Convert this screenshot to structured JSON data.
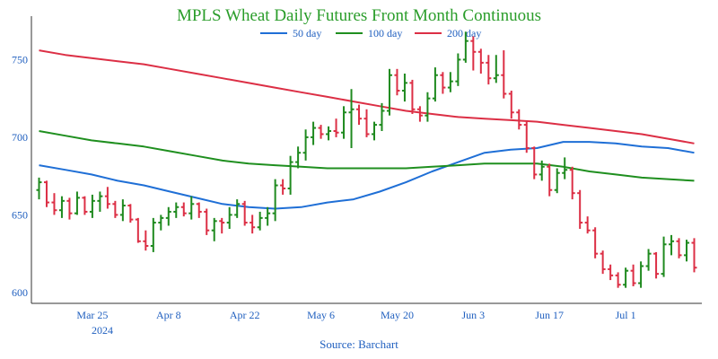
{
  "colors": {
    "title": "#2a9d2a",
    "axis_text": "#1f5fbf",
    "up_bar": "#1f8a1f",
    "down_bar": "#dc2f45",
    "ma50": "#1f6fd6",
    "ma100": "#1f8f1f",
    "ma200": "#dc2f45",
    "axis_line": "#333333"
  },
  "chart_data": {
    "type": "ohlc",
    "title": "MPLS Wheat Daily Futures Front Month Continuous",
    "source": "Source: Barchart",
    "xlabel": "",
    "ylabel": "",
    "ylim": [
      593,
      778
    ],
    "y_ticks": [
      600,
      650,
      700,
      750
    ],
    "x_tick_labels": [
      "Mar 25",
      "Apr 8",
      "Apr 22",
      "May 6",
      "May 20",
      "Jun 3",
      "Jun 17",
      "Jul 1"
    ],
    "x_tick_sublabel": "2024",
    "grid": false,
    "legend_position": "top-center",
    "series": [
      {
        "name": "50 day",
        "color": "#1f6fd6",
        "values": [
          682,
          679,
          676,
          672,
          669,
          665,
          661,
          657,
          655,
          654,
          655,
          658,
          660,
          665,
          671,
          678,
          684,
          690,
          692,
          693,
          697,
          697,
          696,
          694,
          693,
          690
        ]
      },
      {
        "name": "100 day",
        "color": "#1f8f1f",
        "values": [
          704,
          701,
          698,
          696,
          694,
          691,
          688,
          685,
          683,
          682,
          681,
          680,
          680,
          680,
          680,
          681,
          682,
          683,
          683,
          683,
          681,
          678,
          676,
          674,
          673,
          672
        ]
      },
      {
        "name": "200 day",
        "color": "#dc2f45",
        "values": [
          756,
          753,
          751,
          749,
          747,
          744,
          741,
          738,
          735,
          732,
          729,
          726,
          723,
          720,
          717,
          715,
          713,
          712,
          711,
          710,
          708,
          706,
          704,
          702,
          699,
          696
        ]
      }
    ],
    "ohlc": [
      {
        "o": 666,
        "h": 674,
        "l": 660,
        "c": 671
      },
      {
        "o": 671,
        "h": 672,
        "l": 655,
        "c": 658
      },
      {
        "o": 658,
        "h": 664,
        "l": 650,
        "c": 653
      },
      {
        "o": 653,
        "h": 662,
        "l": 648,
        "c": 659
      },
      {
        "o": 659,
        "h": 661,
        "l": 647,
        "c": 651
      },
      {
        "o": 651,
        "h": 665,
        "l": 650,
        "c": 661
      },
      {
        "o": 661,
        "h": 662,
        "l": 650,
        "c": 652
      },
      {
        "o": 652,
        "h": 663,
        "l": 648,
        "c": 659
      },
      {
        "o": 659,
        "h": 665,
        "l": 652,
        "c": 662
      },
      {
        "o": 662,
        "h": 668,
        "l": 654,
        "c": 657
      },
      {
        "o": 657,
        "h": 659,
        "l": 648,
        "c": 650
      },
      {
        "o": 650,
        "h": 660,
        "l": 646,
        "c": 656
      },
      {
        "o": 656,
        "h": 657,
        "l": 645,
        "c": 647
      },
      {
        "o": 647,
        "h": 648,
        "l": 632,
        "c": 633
      },
      {
        "o": 633,
        "h": 640,
        "l": 627,
        "c": 630
      },
      {
        "o": 630,
        "h": 648,
        "l": 626,
        "c": 645
      },
      {
        "o": 645,
        "h": 650,
        "l": 640,
        "c": 648
      },
      {
        "o": 648,
        "h": 655,
        "l": 643,
        "c": 652
      },
      {
        "o": 652,
        "h": 658,
        "l": 648,
        "c": 655
      },
      {
        "o": 655,
        "h": 658,
        "l": 649,
        "c": 651
      },
      {
        "o": 651,
        "h": 662,
        "l": 647,
        "c": 657
      },
      {
        "o": 657,
        "h": 658,
        "l": 648,
        "c": 652
      },
      {
        "o": 652,
        "h": 654,
        "l": 637,
        "c": 640
      },
      {
        "o": 640,
        "h": 648,
        "l": 633,
        "c": 646
      },
      {
        "o": 646,
        "h": 648,
        "l": 638,
        "c": 645
      },
      {
        "o": 645,
        "h": 655,
        "l": 641,
        "c": 650
      },
      {
        "o": 650,
        "h": 660,
        "l": 648,
        "c": 657
      },
      {
        "o": 657,
        "h": 659,
        "l": 643,
        "c": 645
      },
      {
        "o": 645,
        "h": 650,
        "l": 638,
        "c": 642
      },
      {
        "o": 642,
        "h": 652,
        "l": 640,
        "c": 648
      },
      {
        "o": 648,
        "h": 655,
        "l": 643,
        "c": 651
      },
      {
        "o": 651,
        "h": 673,
        "l": 646,
        "c": 669
      },
      {
        "o": 669,
        "h": 673,
        "l": 663,
        "c": 667
      },
      {
        "o": 667,
        "h": 688,
        "l": 663,
        "c": 684
      },
      {
        "o": 684,
        "h": 694,
        "l": 680,
        "c": 690
      },
      {
        "o": 690,
        "h": 705,
        "l": 685,
        "c": 700
      },
      {
        "o": 700,
        "h": 710,
        "l": 695,
        "c": 706
      },
      {
        "o": 706,
        "h": 708,
        "l": 699,
        "c": 702
      },
      {
        "o": 702,
        "h": 707,
        "l": 698,
        "c": 704
      },
      {
        "o": 704,
        "h": 712,
        "l": 700,
        "c": 703
      },
      {
        "o": 703,
        "h": 720,
        "l": 699,
        "c": 716
      },
      {
        "o": 716,
        "h": 731,
        "l": 693,
        "c": 718
      },
      {
        "o": 718,
        "h": 721,
        "l": 708,
        "c": 712
      },
      {
        "o": 712,
        "h": 718,
        "l": 700,
        "c": 702
      },
      {
        "o": 702,
        "h": 710,
        "l": 698,
        "c": 708
      },
      {
        "o": 708,
        "h": 722,
        "l": 704,
        "c": 717
      },
      {
        "o": 717,
        "h": 744,
        "l": 714,
        "c": 740
      },
      {
        "o": 740,
        "h": 744,
        "l": 727,
        "c": 730
      },
      {
        "o": 730,
        "h": 741,
        "l": 723,
        "c": 735
      },
      {
        "o": 735,
        "h": 737,
        "l": 715,
        "c": 718
      },
      {
        "o": 718,
        "h": 720,
        "l": 710,
        "c": 714
      },
      {
        "o": 714,
        "h": 729,
        "l": 710,
        "c": 725
      },
      {
        "o": 725,
        "h": 745,
        "l": 723,
        "c": 740
      },
      {
        "o": 740,
        "h": 742,
        "l": 728,
        "c": 732
      },
      {
        "o": 732,
        "h": 742,
        "l": 729,
        "c": 736
      },
      {
        "o": 736,
        "h": 754,
        "l": 733,
        "c": 750
      },
      {
        "o": 750,
        "h": 768,
        "l": 748,
        "c": 762
      },
      {
        "o": 762,
        "h": 765,
        "l": 743,
        "c": 755
      },
      {
        "o": 755,
        "h": 757,
        "l": 741,
        "c": 748
      },
      {
        "o": 748,
        "h": 753,
        "l": 734,
        "c": 738
      },
      {
        "o": 738,
        "h": 753,
        "l": 735,
        "c": 740
      },
      {
        "o": 740,
        "h": 756,
        "l": 725,
        "c": 728
      },
      {
        "o": 728,
        "h": 730,
        "l": 712,
        "c": 716
      },
      {
        "o": 716,
        "h": 718,
        "l": 705,
        "c": 708
      },
      {
        "o": 708,
        "h": 710,
        "l": 690,
        "c": 693
      },
      {
        "o": 693,
        "h": 694,
        "l": 673,
        "c": 676
      },
      {
        "o": 676,
        "h": 685,
        "l": 672,
        "c": 681
      },
      {
        "o": 681,
        "h": 683,
        "l": 662,
        "c": 666
      },
      {
        "o": 666,
        "h": 680,
        "l": 664,
        "c": 677
      },
      {
        "o": 677,
        "h": 687,
        "l": 673,
        "c": 679
      },
      {
        "o": 679,
        "h": 681,
        "l": 660,
        "c": 664
      },
      {
        "o": 664,
        "h": 666,
        "l": 641,
        "c": 645
      },
      {
        "o": 645,
        "h": 649,
        "l": 638,
        "c": 640
      },
      {
        "o": 640,
        "h": 642,
        "l": 622,
        "c": 625
      },
      {
        "o": 625,
        "h": 627,
        "l": 612,
        "c": 615
      },
      {
        "o": 615,
        "h": 618,
        "l": 608,
        "c": 611
      },
      {
        "o": 611,
        "h": 613,
        "l": 603,
        "c": 605
      },
      {
        "o": 605,
        "h": 616,
        "l": 603,
        "c": 614
      },
      {
        "o": 614,
        "h": 618,
        "l": 604,
        "c": 606
      },
      {
        "o": 606,
        "h": 620,
        "l": 603,
        "c": 617
      },
      {
        "o": 617,
        "h": 628,
        "l": 614,
        "c": 625
      },
      {
        "o": 625,
        "h": 626,
        "l": 609,
        "c": 612
      },
      {
        "o": 612,
        "h": 636,
        "l": 610,
        "c": 631
      },
      {
        "o": 631,
        "h": 637,
        "l": 624,
        "c": 633
      },
      {
        "o": 633,
        "h": 635,
        "l": 622,
        "c": 624
      },
      {
        "o": 624,
        "h": 634,
        "l": 620,
        "c": 632
      },
      {
        "o": 632,
        "h": 635,
        "l": 613,
        "c": 616
      }
    ]
  }
}
